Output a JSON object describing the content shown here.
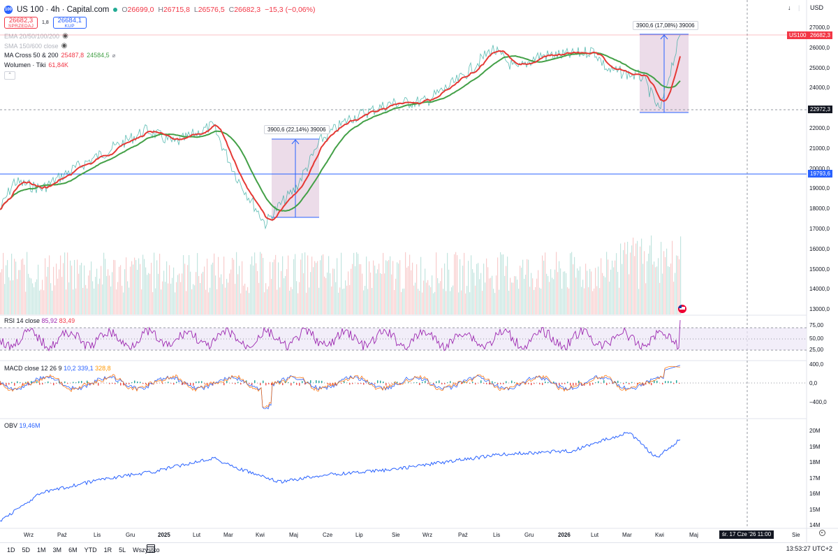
{
  "symbol": {
    "logo": "100",
    "title": "US 100 · 4h · Capital.com",
    "ohlc": [
      {
        "label": "O",
        "value": "26699,0"
      },
      {
        "label": "H",
        "value": "26715,8"
      },
      {
        "label": "L",
        "value": "26576,5"
      },
      {
        "label": "C",
        "value": "26682,3"
      },
      {
        "label": "",
        "value": "−15,3 (−0,06%)"
      }
    ]
  },
  "trade": {
    "sell_price": "26682,3",
    "sell_label": "SPRZEDAJ",
    "spread": "1,8",
    "buy_price": "26684,1",
    "buy_label": "KUP"
  },
  "indicators": {
    "ema": "EMA 20/50/100/200",
    "sma": "SMA 150/600 close",
    "ma_cross": {
      "label": "MA Cross 50 & 200",
      "v1": "25487,8",
      "v2": "24584,5"
    },
    "volume": {
      "label": "Wolumen · Tiki",
      "value": "61,84K"
    }
  },
  "toolbar": {
    "down": "↓",
    "sep": "|",
    "currency": "USD"
  },
  "price_axis": {
    "ticks": [
      "27000,0",
      "26000,0",
      "25000,0",
      "24000,0",
      "23000,0",
      "22000,0",
      "21000,0",
      "20000,0",
      "19000,0",
      "18000,0",
      "17000,0",
      "16000,0",
      "15000,0",
      "14000,0",
      "13000,0"
    ],
    "current_symbol": "US100",
    "current_price": "26682,3",
    "level_1": "22972,3",
    "level_2": "19793,6"
  },
  "measures": [
    {
      "label": "3900,6 (22,14%) 39006"
    },
    {
      "label": "3900,6 (17,08%) 39006"
    }
  ],
  "rsi": {
    "title": "RSI 14 close",
    "v1": "85,92",
    "v2": "83,49",
    "ticks": [
      "75,00",
      "50,00",
      "25,00"
    ]
  },
  "macd": {
    "title": "MACD close 12 26 9",
    "v1": "10,2",
    "v2": "339,1",
    "v3": "328,8",
    "ticks": [
      "400,0",
      "0,0",
      "−400,0"
    ]
  },
  "obv": {
    "title": "OBV",
    "value": "19,46M",
    "ticks": [
      "20M",
      "19M",
      "18M",
      "17M",
      "16M",
      "15M",
      "14M"
    ]
  },
  "time_axis": [
    {
      "label": "Wrz",
      "bold": false
    },
    {
      "label": "Paź",
      "bold": false
    },
    {
      "label": "Lis",
      "bold": false
    },
    {
      "label": "Gru",
      "bold": false
    },
    {
      "label": "2025",
      "bold": true
    },
    {
      "label": "Lut",
      "bold": false
    },
    {
      "label": "Mar",
      "bold": false
    },
    {
      "label": "Kwi",
      "bold": false
    },
    {
      "label": "Maj",
      "bold": false
    },
    {
      "label": "Cze",
      "bold": false
    },
    {
      "label": "Lip",
      "bold": false
    },
    {
      "label": "Sie",
      "bold": false
    },
    {
      "label": "Wrz",
      "bold": false
    },
    {
      "label": "Paź",
      "bold": false
    },
    {
      "label": "Lis",
      "bold": false
    },
    {
      "label": "Gru",
      "bold": false
    },
    {
      "label": "2026",
      "bold": true
    },
    {
      "label": "Lut",
      "bold": false
    },
    {
      "label": "Mar",
      "bold": false
    },
    {
      "label": "Kwi",
      "bold": false
    },
    {
      "label": "Maj",
      "bold": false
    },
    {
      "label": "Sie",
      "bold": false
    }
  ],
  "cursor_time": "śr. 17 Cze '26   11:00",
  "bottom": {
    "ranges": [
      "1D",
      "5D",
      "1M",
      "3M",
      "6M",
      "YTD",
      "1R",
      "5L",
      "Wszystko"
    ],
    "clock": "13:53:27 UTC+2"
  },
  "colors": {
    "red": "#f23645",
    "green": "#43a047",
    "blue": "#2962ff",
    "purple": "#9c27b0",
    "measure_fill": "#e7d3e3"
  }
}
